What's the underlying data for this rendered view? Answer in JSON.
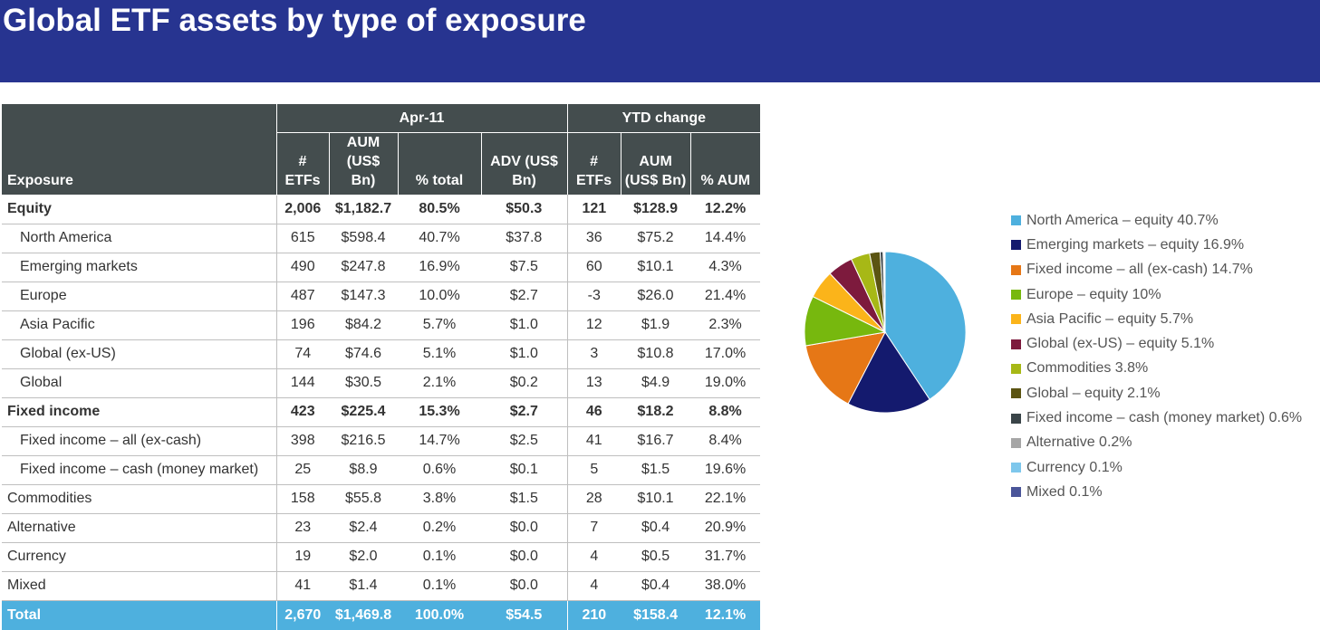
{
  "title": "Global ETF assets by type of exposure",
  "table": {
    "group_apr": "Apr-11",
    "group_ytd": "YTD change",
    "headers": {
      "exposure": "Exposure",
      "etfs_apr": "# ETFs",
      "aum_apr": "AUM (US$ Bn)",
      "pct_total": "% total",
      "adv": "ADV (US$ Bn)",
      "etfs_ytd": "# ETFs",
      "aum_ytd": "AUM (US$ Bn)",
      "pct_aum": "% AUM"
    },
    "rows": [
      {
        "label": "Equity",
        "style": "bold",
        "cells": [
          "2,006",
          "$1,182.7",
          "80.5%",
          "$50.3",
          "121",
          "$128.9",
          "12.2%"
        ]
      },
      {
        "label": "North America",
        "style": "indent",
        "cells": [
          "615",
          "$598.4",
          "40.7%",
          "$37.8",
          "36",
          "$75.2",
          "14.4%"
        ]
      },
      {
        "label": "Emerging markets",
        "style": "indent",
        "cells": [
          "490",
          "$247.8",
          "16.9%",
          "$7.5",
          "60",
          "$10.1",
          "4.3%"
        ]
      },
      {
        "label": "Europe",
        "style": "indent",
        "cells": [
          "487",
          "$147.3",
          "10.0%",
          "$2.7",
          "-3",
          "$26.0",
          "21.4%"
        ]
      },
      {
        "label": "Asia Pacific",
        "style": "indent",
        "cells": [
          "196",
          "$84.2",
          "5.7%",
          "$1.0",
          "12",
          "$1.9",
          "2.3%"
        ]
      },
      {
        "label": "Global (ex-US)",
        "style": "indent",
        "cells": [
          "74",
          "$74.6",
          "5.1%",
          "$1.0",
          "3",
          "$10.8",
          "17.0%"
        ]
      },
      {
        "label": "Global",
        "style": "indent",
        "cells": [
          "144",
          "$30.5",
          "2.1%",
          "$0.2",
          "13",
          "$4.9",
          "19.0%"
        ]
      },
      {
        "label": "Fixed income",
        "style": "bold",
        "cells": [
          "423",
          "$225.4",
          "15.3%",
          "$2.7",
          "46",
          "$18.2",
          "8.8%"
        ]
      },
      {
        "label": "Fixed income – all (ex-cash)",
        "style": "indent",
        "cells": [
          "398",
          "$216.5",
          "14.7%",
          "$2.5",
          "41",
          "$16.7",
          "8.4%"
        ]
      },
      {
        "label": "Fixed income – cash (money market)",
        "style": "indent",
        "cells": [
          "25",
          "$8.9",
          "0.6%",
          "$0.1",
          "5",
          "$1.5",
          "19.6%"
        ]
      },
      {
        "label": "Commodities",
        "style": "plain",
        "cells": [
          "158",
          "$55.8",
          "3.8%",
          "$1.5",
          "28",
          "$10.1",
          "22.1%"
        ]
      },
      {
        "label": "Alternative",
        "style": "plain",
        "cells": [
          "23",
          "$2.4",
          "0.2%",
          "$0.0",
          "7",
          "$0.4",
          "20.9%"
        ]
      },
      {
        "label": "Currency",
        "style": "plain",
        "cells": [
          "19",
          "$2.0",
          "0.1%",
          "$0.0",
          "4",
          "$0.5",
          "31.7%"
        ]
      },
      {
        "label": "Mixed",
        "style": "plain",
        "cells": [
          "41",
          "$1.4",
          "0.1%",
          "$0.0",
          "4",
          "$0.4",
          "38.0%"
        ]
      },
      {
        "label": "Total",
        "style": "total",
        "cells": [
          "2,670",
          "$1,469.8",
          "100.0%",
          "$54.5",
          "210",
          "$158.4",
          "12.1%"
        ]
      }
    ]
  },
  "chart_data": {
    "type": "pie",
    "title": "",
    "slices": [
      {
        "label": "North America – equity 40.7%",
        "value": 40.7,
        "color": "#4eb0de"
      },
      {
        "label": "Emerging markets – equity 16.9%",
        "value": 16.9,
        "color": "#141a6e"
      },
      {
        "label": "Fixed income – all (ex-cash) 14.7%",
        "value": 14.7,
        "color": "#e67716"
      },
      {
        "label": "Europe – equity 10%",
        "value": 10.0,
        "color": "#77b80e"
      },
      {
        "label": "Asia Pacific – equity 5.7%",
        "value": 5.7,
        "color": "#fbb41a"
      },
      {
        "label": "Global (ex-US) – equity 5.1%",
        "value": 5.1,
        "color": "#7d1a3d"
      },
      {
        "label": "Commodities 3.8%",
        "value": 3.8,
        "color": "#a7b816"
      },
      {
        "label": "Global – equity 2.1%",
        "value": 2.1,
        "color": "#5b5412"
      },
      {
        "label": "Fixed income – cash (money market) 0.6%",
        "value": 0.6,
        "color": "#3a4448"
      },
      {
        "label": "Alternative 0.2%",
        "value": 0.2,
        "color": "#a6a6a6"
      },
      {
        "label": "Currency 0.1%",
        "value": 0.1,
        "color": "#7ec7ec"
      },
      {
        "label": "Mixed 0.1%",
        "value": 0.1,
        "color": "#4a5599"
      }
    ],
    "legend_position": "right"
  }
}
